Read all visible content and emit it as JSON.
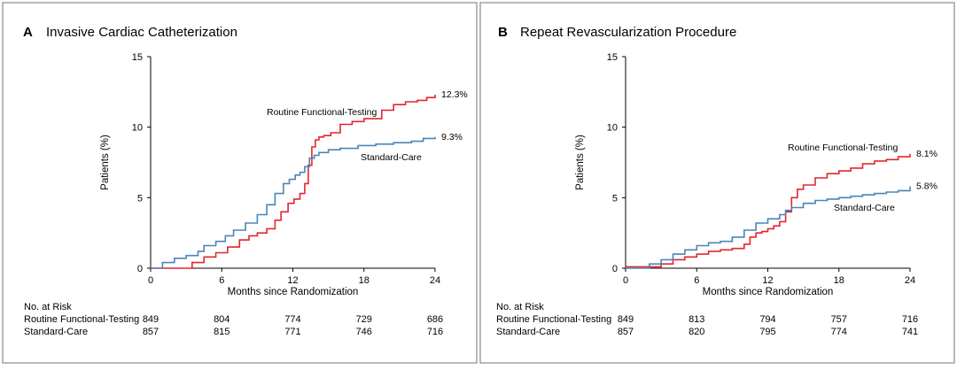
{
  "chart_data": [
    {
      "type": "line",
      "panel_letter": "A",
      "title": "Invasive Cardiac Catheterization",
      "xlabel": "Months since Randomization",
      "ylabel": "Patients (%)",
      "xlim": [
        0,
        24
      ],
      "ylim": [
        0,
        15
      ],
      "xticks": [
        "0",
        "6",
        "12",
        "18",
        "24"
      ],
      "yticks": [
        "0",
        "5",
        "10",
        "15"
      ],
      "series": [
        {
          "name": "Routine Functional-Testing",
          "color": "#e3262f",
          "end_label": "12.3%",
          "x": [
            0,
            2.6,
            3.5,
            4.5,
            5.5,
            6.5,
            7.5,
            8.3,
            9.0,
            9.8,
            10.5,
            11.0,
            11.6,
            12.1,
            12.6,
            13.0,
            13.3,
            13.6,
            13.9,
            14.2,
            14.6,
            15.2,
            16.0,
            17.0,
            18.0,
            19.5,
            20.5,
            21.5,
            22.5,
            23.3,
            24.0
          ],
          "y": [
            0,
            0,
            0.4,
            0.8,
            1.1,
            1.5,
            2.0,
            2.3,
            2.5,
            2.8,
            3.4,
            4.0,
            4.6,
            4.9,
            5.3,
            6.0,
            7.3,
            8.6,
            9.1,
            9.3,
            9.4,
            9.6,
            10.2,
            10.4,
            10.6,
            11.2,
            11.6,
            11.8,
            11.9,
            12.1,
            12.3
          ]
        },
        {
          "name": "Standard-Care",
          "color": "#4a86b8",
          "end_label": "9.3%",
          "x": [
            0,
            1.0,
            2.0,
            3.0,
            4.0,
            4.5,
            5.5,
            6.3,
            7.0,
            8.0,
            9.0,
            9.8,
            10.5,
            11.2,
            11.7,
            12.2,
            12.6,
            13.0,
            13.4,
            13.8,
            14.2,
            15.0,
            16.0,
            17.5,
            19.0,
            20.5,
            22.0,
            23.0,
            24.0
          ],
          "y": [
            0,
            0.4,
            0.7,
            0.9,
            1.2,
            1.6,
            1.9,
            2.3,
            2.7,
            3.2,
            3.8,
            4.5,
            5.3,
            6.0,
            6.3,
            6.6,
            6.8,
            7.2,
            7.8,
            8.0,
            8.2,
            8.4,
            8.5,
            8.7,
            8.8,
            8.9,
            9.0,
            9.2,
            9.3
          ]
        }
      ],
      "at_risk": {
        "heading": "No. at Risk",
        "rows": [
          {
            "label": "Routine Functional-Testing",
            "values": [
              "849",
              "804",
              "774",
              "729",
              "686"
            ]
          },
          {
            "label": "Standard-Care",
            "values": [
              "857",
              "815",
              "771",
              "746",
              "716"
            ]
          }
        ]
      }
    },
    {
      "type": "line",
      "panel_letter": "B",
      "title": "Repeat Revascularization Procedure",
      "xlabel": "Months since Randomization",
      "ylabel": "Patients (%)",
      "xlim": [
        0,
        24
      ],
      "ylim": [
        0,
        15
      ],
      "xticks": [
        "0",
        "6",
        "12",
        "18",
        "24"
      ],
      "yticks": [
        "0",
        "5",
        "10",
        "15"
      ],
      "series": [
        {
          "name": "Routine Functional-Testing",
          "color": "#e3262f",
          "end_label": "8.1%",
          "x": [
            0,
            2.0,
            3.0,
            4.0,
            5.0,
            6.0,
            7.0,
            8.0,
            9.0,
            10.0,
            10.5,
            11.0,
            11.5,
            12.0,
            12.5,
            13.0,
            13.5,
            14.0,
            14.5,
            15.0,
            16.0,
            17.0,
            18.0,
            19.0,
            20.0,
            21.0,
            22.0,
            23.0,
            24.0
          ],
          "y": [
            0.1,
            0.1,
            0.3,
            0.6,
            0.8,
            1.0,
            1.2,
            1.3,
            1.4,
            1.7,
            2.2,
            2.5,
            2.6,
            2.8,
            3.0,
            3.3,
            4.0,
            5.0,
            5.6,
            5.9,
            6.4,
            6.7,
            6.9,
            7.1,
            7.4,
            7.6,
            7.7,
            7.9,
            8.1
          ]
        },
        {
          "name": "Standard-Care",
          "color": "#4a86b8",
          "end_label": "5.8%",
          "x": [
            0,
            2.0,
            3.0,
            4.0,
            5.0,
            6.0,
            7.0,
            8.0,
            9.0,
            10.0,
            11.0,
            12.0,
            13.0,
            13.5,
            14.0,
            15.0,
            16.0,
            17.0,
            18.0,
            19.0,
            20.0,
            21.0,
            22.0,
            23.0,
            24.0
          ],
          "y": [
            0,
            0.3,
            0.6,
            1.0,
            1.3,
            1.6,
            1.8,
            1.9,
            2.2,
            2.7,
            3.2,
            3.5,
            3.8,
            4.1,
            4.3,
            4.6,
            4.8,
            4.9,
            5.0,
            5.1,
            5.2,
            5.3,
            5.4,
            5.5,
            5.8
          ]
        }
      ],
      "at_risk": {
        "heading": "No. at Risk",
        "rows": [
          {
            "label": "Routine Functional-Testing",
            "values": [
              "849",
              "813",
              "794",
              "757",
              "716"
            ]
          },
          {
            "label": "Standard-Care",
            "values": [
              "857",
              "820",
              "795",
              "774",
              "741"
            ]
          }
        ]
      }
    }
  ]
}
